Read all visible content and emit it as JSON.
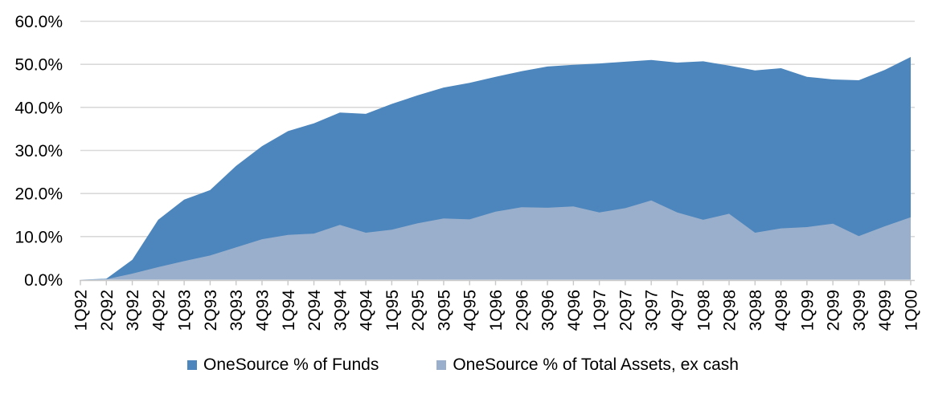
{
  "chart_data": {
    "type": "area",
    "overlap": true,
    "title": "",
    "xlabel": "",
    "ylabel": "",
    "categories": [
      "1Q92",
      "2Q92",
      "3Q92",
      "4Q92",
      "1Q93",
      "2Q93",
      "3Q93",
      "4Q93",
      "1Q94",
      "2Q94",
      "3Q94",
      "4Q94",
      "1Q95",
      "2Q95",
      "3Q95",
      "4Q95",
      "1Q96",
      "2Q96",
      "3Q96",
      "4Q96",
      "1Q97",
      "2Q97",
      "3Q97",
      "4Q97",
      "1Q98",
      "2Q98",
      "3Q98",
      "4Q98",
      "1Q99",
      "2Q99",
      "3Q99",
      "4Q99",
      "1Q00"
    ],
    "series": [
      {
        "key": "funds",
        "name": "OneSource % of Funds",
        "color": "#4c86bc",
        "values": [
          0,
          0.2,
          4.6,
          13.9,
          18.6,
          20.8,
          26.4,
          31.0,
          34.5,
          36.3,
          38.8,
          38.5,
          40.8,
          42.8,
          44.6,
          45.7,
          47.1,
          48.4,
          49.5,
          49.9,
          50.2,
          50.6,
          51.0,
          50.4,
          50.7,
          49.7,
          48.6,
          49.1,
          47.1,
          46.5,
          46.3,
          48.7,
          51.7
        ]
      },
      {
        "key": "assets",
        "name": "OneSource % of Total Assets, ex cash",
        "color": "#9aafcc",
        "values": [
          0,
          0.1,
          1.4,
          2.9,
          4.3,
          5.6,
          7.5,
          9.4,
          10.4,
          10.7,
          12.7,
          10.9,
          11.6,
          13.1,
          14.2,
          14.0,
          15.8,
          16.8,
          16.7,
          17.0,
          15.6,
          16.6,
          18.4,
          15.6,
          13.9,
          15.3,
          10.9,
          11.9,
          12.2,
          13.0,
          10.1,
          12.4,
          14.5
        ]
      }
    ],
    "ylim": [
      0,
      60
    ],
    "ytick_step": 10,
    "ytick_labels": [
      "0.0%",
      "10.0%",
      "20.0%",
      "30.0%",
      "40.0%",
      "50.0%",
      "60.0%"
    ],
    "grid": true,
    "legend_position": "bottom"
  },
  "colors": {
    "grid": "#d9d9d9",
    "axis": "#c8c8c8",
    "text": "#000000",
    "background": "#ffffff"
  }
}
